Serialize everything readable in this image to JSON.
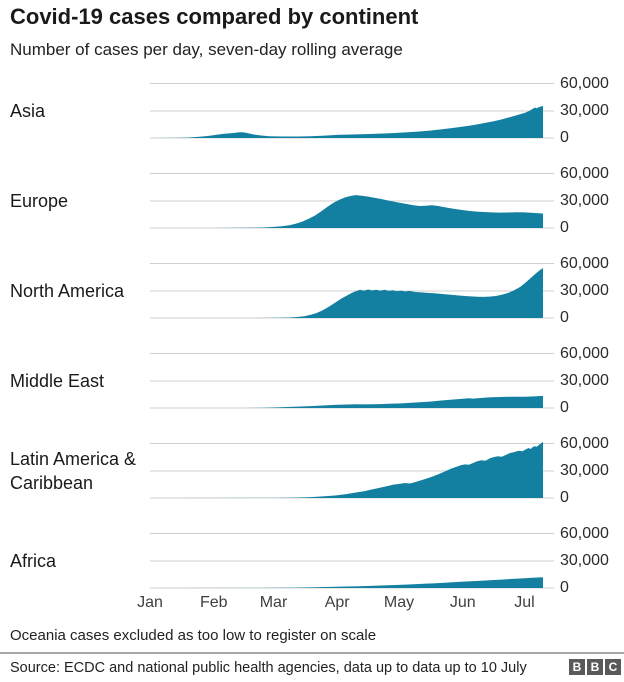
{
  "header": {
    "title": "Covid-19 cases compared by continent",
    "subtitle": "Number of cases per day, seven-day rolling average"
  },
  "chart_data": {
    "type": "area",
    "title": "Covid-19 cases compared by continent",
    "subtitle": "Number of cases per day, seven-day rolling average",
    "x_axis": "days since 1 Jan 2020, series end 10 July (day 191)",
    "x_tick_labels": [
      "Jan",
      "Feb",
      "Mar",
      "Apr",
      "May",
      "Jun",
      "Jul"
    ],
    "x_tick_days": [
      0,
      31,
      60,
      91,
      121,
      152,
      182
    ],
    "y_tick_labels": [
      "60,000",
      "30,000",
      "0"
    ],
    "ylim": [
      0,
      60000
    ],
    "value_unit": "cases per day (thousands)",
    "fill_color": "#1380a1",
    "gridline_color": "#cfcfcf",
    "grid": true,
    "legend": "row labels at left",
    "charts": [
      {
        "label": "Asia",
        "points": [
          [
            0,
            0
          ],
          [
            10,
            0.1
          ],
          [
            18,
            0.4
          ],
          [
            24,
            1.3
          ],
          [
            28,
            2.2
          ],
          [
            32,
            3.4
          ],
          [
            36,
            4.6
          ],
          [
            40,
            5.4
          ],
          [
            43,
            6.2
          ],
          [
            45,
            6.4
          ],
          [
            47,
            5.6
          ],
          [
            50,
            4.0
          ],
          [
            54,
            2.8
          ],
          [
            58,
            2.0
          ],
          [
            65,
            1.7
          ],
          [
            72,
            1.6
          ],
          [
            78,
            1.9
          ],
          [
            85,
            2.6
          ],
          [
            91,
            3.4
          ],
          [
            98,
            3.9
          ],
          [
            105,
            4.3
          ],
          [
            112,
            4.8
          ],
          [
            118,
            5.4
          ],
          [
            124,
            6.2
          ],
          [
            130,
            7.0
          ],
          [
            136,
            8.2
          ],
          [
            142,
            9.6
          ],
          [
            147,
            11.0
          ],
          [
            152,
            12.5
          ],
          [
            157,
            14.2
          ],
          [
            162,
            16.2
          ],
          [
            167,
            18.5
          ],
          [
            171,
            20.5
          ],
          [
            175,
            23.0
          ],
          [
            179,
            25.5
          ],
          [
            182,
            27.5
          ],
          [
            184,
            29.5
          ],
          [
            186,
            32.0
          ],
          [
            187,
            33.5
          ],
          [
            188,
            32.8
          ],
          [
            189,
            34.0
          ],
          [
            191,
            35.3
          ]
        ]
      },
      {
        "label": "Europe",
        "points": [
          [
            0,
            0
          ],
          [
            30,
            0.05
          ],
          [
            45,
            0.2
          ],
          [
            55,
            0.6
          ],
          [
            60,
            1.2
          ],
          [
            64,
            2.0
          ],
          [
            68,
            3.2
          ],
          [
            71,
            4.8
          ],
          [
            74,
            7.0
          ],
          [
            77,
            10.0
          ],
          [
            80,
            13.5
          ],
          [
            83,
            18.0
          ],
          [
            86,
            23.0
          ],
          [
            89,
            27.5
          ],
          [
            92,
            31.0
          ],
          [
            95,
            33.8
          ],
          [
            98,
            35.5
          ],
          [
            100,
            36.2
          ],
          [
            103,
            35.6
          ],
          [
            106,
            34.6
          ],
          [
            109,
            33.4
          ],
          [
            112,
            32.0
          ],
          [
            116,
            30.2
          ],
          [
            120,
            28.4
          ],
          [
            124,
            26.6
          ],
          [
            128,
            25.0
          ],
          [
            131,
            24.2
          ],
          [
            134,
            24.6
          ],
          [
            137,
            25.0
          ],
          [
            140,
            24.2
          ],
          [
            143,
            23.0
          ],
          [
            146,
            21.8
          ],
          [
            150,
            20.4
          ],
          [
            154,
            19.2
          ],
          [
            158,
            18.2
          ],
          [
            162,
            17.6
          ],
          [
            166,
            17.2
          ],
          [
            170,
            17.0
          ],
          [
            174,
            17.1
          ],
          [
            178,
            17.3
          ],
          [
            182,
            17.2
          ],
          [
            185,
            16.8
          ],
          [
            188,
            16.4
          ],
          [
            191,
            16.0
          ]
        ]
      },
      {
        "label": "North America",
        "points": [
          [
            0,
            0
          ],
          [
            50,
            0.05
          ],
          [
            62,
            0.2
          ],
          [
            68,
            0.6
          ],
          [
            72,
            1.2
          ],
          [
            75,
            2.0
          ],
          [
            78,
            3.4
          ],
          [
            81,
            5.5
          ],
          [
            84,
            8.5
          ],
          [
            87,
            12.5
          ],
          [
            90,
            17.0
          ],
          [
            93,
            21.5
          ],
          [
            96,
            25.0
          ],
          [
            98,
            27.5
          ],
          [
            100,
            29.5
          ],
          [
            102,
            31.0
          ],
          [
            104,
            30.2
          ],
          [
            106,
            31.4
          ],
          [
            108,
            30.4
          ],
          [
            110,
            31.2
          ],
          [
            112,
            30.2
          ],
          [
            114,
            31.0
          ],
          [
            116,
            30.0
          ],
          [
            118,
            30.6
          ],
          [
            120,
            29.6
          ],
          [
            122,
            30.2
          ],
          [
            124,
            29.2
          ],
          [
            126,
            29.8
          ],
          [
            129,
            28.6
          ],
          [
            132,
            28.2
          ],
          [
            135,
            27.6
          ],
          [
            138,
            27.2
          ],
          [
            141,
            26.6
          ],
          [
            144,
            26.0
          ],
          [
            147,
            25.4
          ],
          [
            150,
            24.8
          ],
          [
            153,
            24.2
          ],
          [
            156,
            23.8
          ],
          [
            159,
            23.4
          ],
          [
            162,
            23.2
          ],
          [
            165,
            23.6
          ],
          [
            168,
            24.2
          ],
          [
            171,
            25.5
          ],
          [
            174,
            27.5
          ],
          [
            177,
            30.5
          ],
          [
            180,
            34.5
          ],
          [
            182,
            38.0
          ],
          [
            184,
            42.0
          ],
          [
            186,
            46.0
          ],
          [
            188,
            50.0
          ],
          [
            190,
            53.5
          ],
          [
            191,
            55.0
          ]
        ]
      },
      {
        "label": "Middle East",
        "points": [
          [
            0,
            0
          ],
          [
            45,
            0.05
          ],
          [
            55,
            0.3
          ],
          [
            62,
            0.7
          ],
          [
            70,
            1.3
          ],
          [
            78,
            2.1
          ],
          [
            85,
            2.9
          ],
          [
            91,
            3.5
          ],
          [
            96,
            3.9
          ],
          [
            100,
            4.1
          ],
          [
            104,
            4.0
          ],
          [
            108,
            4.1
          ],
          [
            112,
            4.3
          ],
          [
            116,
            4.6
          ],
          [
            121,
            5.0
          ],
          [
            126,
            5.6
          ],
          [
            131,
            6.3
          ],
          [
            136,
            7.1
          ],
          [
            141,
            8.1
          ],
          [
            145,
            8.9
          ],
          [
            149,
            9.6
          ],
          [
            152,
            10.2
          ],
          [
            155,
            10.7
          ],
          [
            157,
            10.4
          ],
          [
            160,
            10.9
          ],
          [
            163,
            11.4
          ],
          [
            166,
            11.8
          ],
          [
            170,
            12.1
          ],
          [
            174,
            12.3
          ],
          [
            178,
            12.4
          ],
          [
            182,
            12.4
          ],
          [
            185,
            12.7
          ],
          [
            188,
            13.0
          ],
          [
            191,
            13.3
          ]
        ]
      },
      {
        "label": "Latin America & Caribbean",
        "points": [
          [
            0,
            0
          ],
          [
            60,
            0.1
          ],
          [
            70,
            0.4
          ],
          [
            78,
            1.0
          ],
          [
            84,
            1.8
          ],
          [
            90,
            2.8
          ],
          [
            95,
            4.2
          ],
          [
            100,
            6.0
          ],
          [
            104,
            7.5
          ],
          [
            108,
            9.5
          ],
          [
            112,
            11.5
          ],
          [
            115,
            13.0
          ],
          [
            118,
            14.5
          ],
          [
            121,
            15.5
          ],
          [
            124,
            16.5
          ],
          [
            126,
            16.0
          ],
          [
            128,
            17.0
          ],
          [
            131,
            19.0
          ],
          [
            134,
            21.0
          ],
          [
            137,
            23.5
          ],
          [
            140,
            26.0
          ],
          [
            143,
            29.0
          ],
          [
            146,
            32.0
          ],
          [
            149,
            34.5
          ],
          [
            151,
            36.0
          ],
          [
            153,
            37.0
          ],
          [
            155,
            36.5
          ],
          [
            157,
            38.5
          ],
          [
            159,
            40.5
          ],
          [
            161,
            41.5
          ],
          [
            163,
            41.0
          ],
          [
            165,
            43.5
          ],
          [
            167,
            45.0
          ],
          [
            169,
            46.0
          ],
          [
            171,
            45.5
          ],
          [
            173,
            47.5
          ],
          [
            175,
            49.5
          ],
          [
            177,
            50.5
          ],
          [
            179,
            52.0
          ],
          [
            181,
            51.5
          ],
          [
            183,
            54.0
          ],
          [
            184,
            55.0
          ],
          [
            185,
            54.0
          ],
          [
            186,
            56.0
          ],
          [
            187,
            57.0
          ],
          [
            188,
            56.5
          ],
          [
            189,
            58.5
          ],
          [
            190,
            60.0
          ],
          [
            191,
            62.0
          ]
        ]
      },
      {
        "label": "Africa",
        "points": [
          [
            0,
            0
          ],
          [
            55,
            0.1
          ],
          [
            70,
            0.4
          ],
          [
            80,
            0.8
          ],
          [
            88,
            1.2
          ],
          [
            95,
            1.6
          ],
          [
            102,
            2.0
          ],
          [
            109,
            2.5
          ],
          [
            116,
            3.0
          ],
          [
            121,
            3.4
          ],
          [
            127,
            4.0
          ],
          [
            133,
            4.6
          ],
          [
            139,
            5.3
          ],
          [
            145,
            6.0
          ],
          [
            151,
            6.8
          ],
          [
            156,
            7.4
          ],
          [
            161,
            8.0
          ],
          [
            166,
            8.7
          ],
          [
            171,
            9.3
          ],
          [
            176,
            10.0
          ],
          [
            181,
            10.6
          ],
          [
            186,
            11.2
          ],
          [
            191,
            11.8
          ]
        ]
      }
    ]
  },
  "footer": {
    "note": "Oceania cases excluded as too low to register on scale",
    "source": "Source: ECDC and national public health agencies, data up to data up to 10 July",
    "logo_letters": [
      "B",
      "B",
      "C"
    ]
  }
}
